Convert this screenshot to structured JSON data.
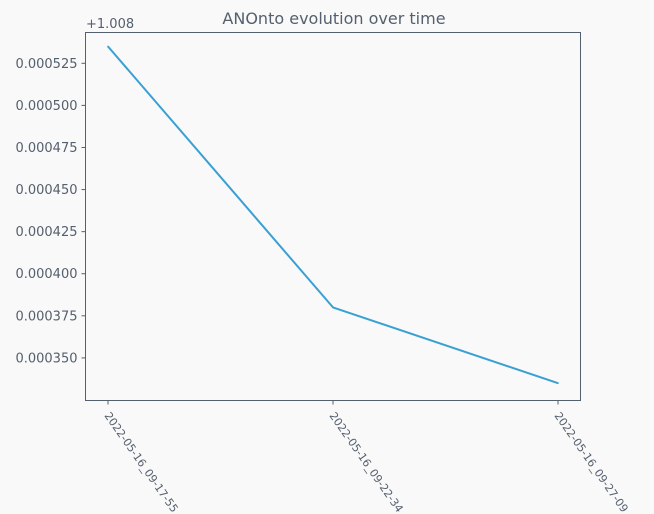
{
  "chart_data": {
    "type": "line",
    "title": "ANOnto evolution over time",
    "xlabel": "",
    "ylabel": "",
    "y_offset_label": "+1.008",
    "y_offset": 1.008,
    "categories": [
      "2022-05-16_09-17-55",
      "2022-05-16_09-22-34",
      "2022-05-16_09-27-09"
    ],
    "series": [
      {
        "values": [
          1.008535,
          1.00838,
          1.008335
        ]
      }
    ],
    "yticks": [
      0.00035,
      0.000375,
      0.0004,
      0.000425,
      0.00045,
      0.000475,
      0.0005,
      0.000525
    ],
    "ytick_labels": [
      "0.000350",
      "0.000375",
      "0.000400",
      "0.000425",
      "0.000450",
      "0.000475",
      "0.000500",
      "0.000525"
    ],
    "ylim": [
      1.0083247,
      1.0085433
    ],
    "grid": false,
    "line_color": "#3aa0d4",
    "text_color": "#55606e",
    "axis_color": "#55606e"
  }
}
